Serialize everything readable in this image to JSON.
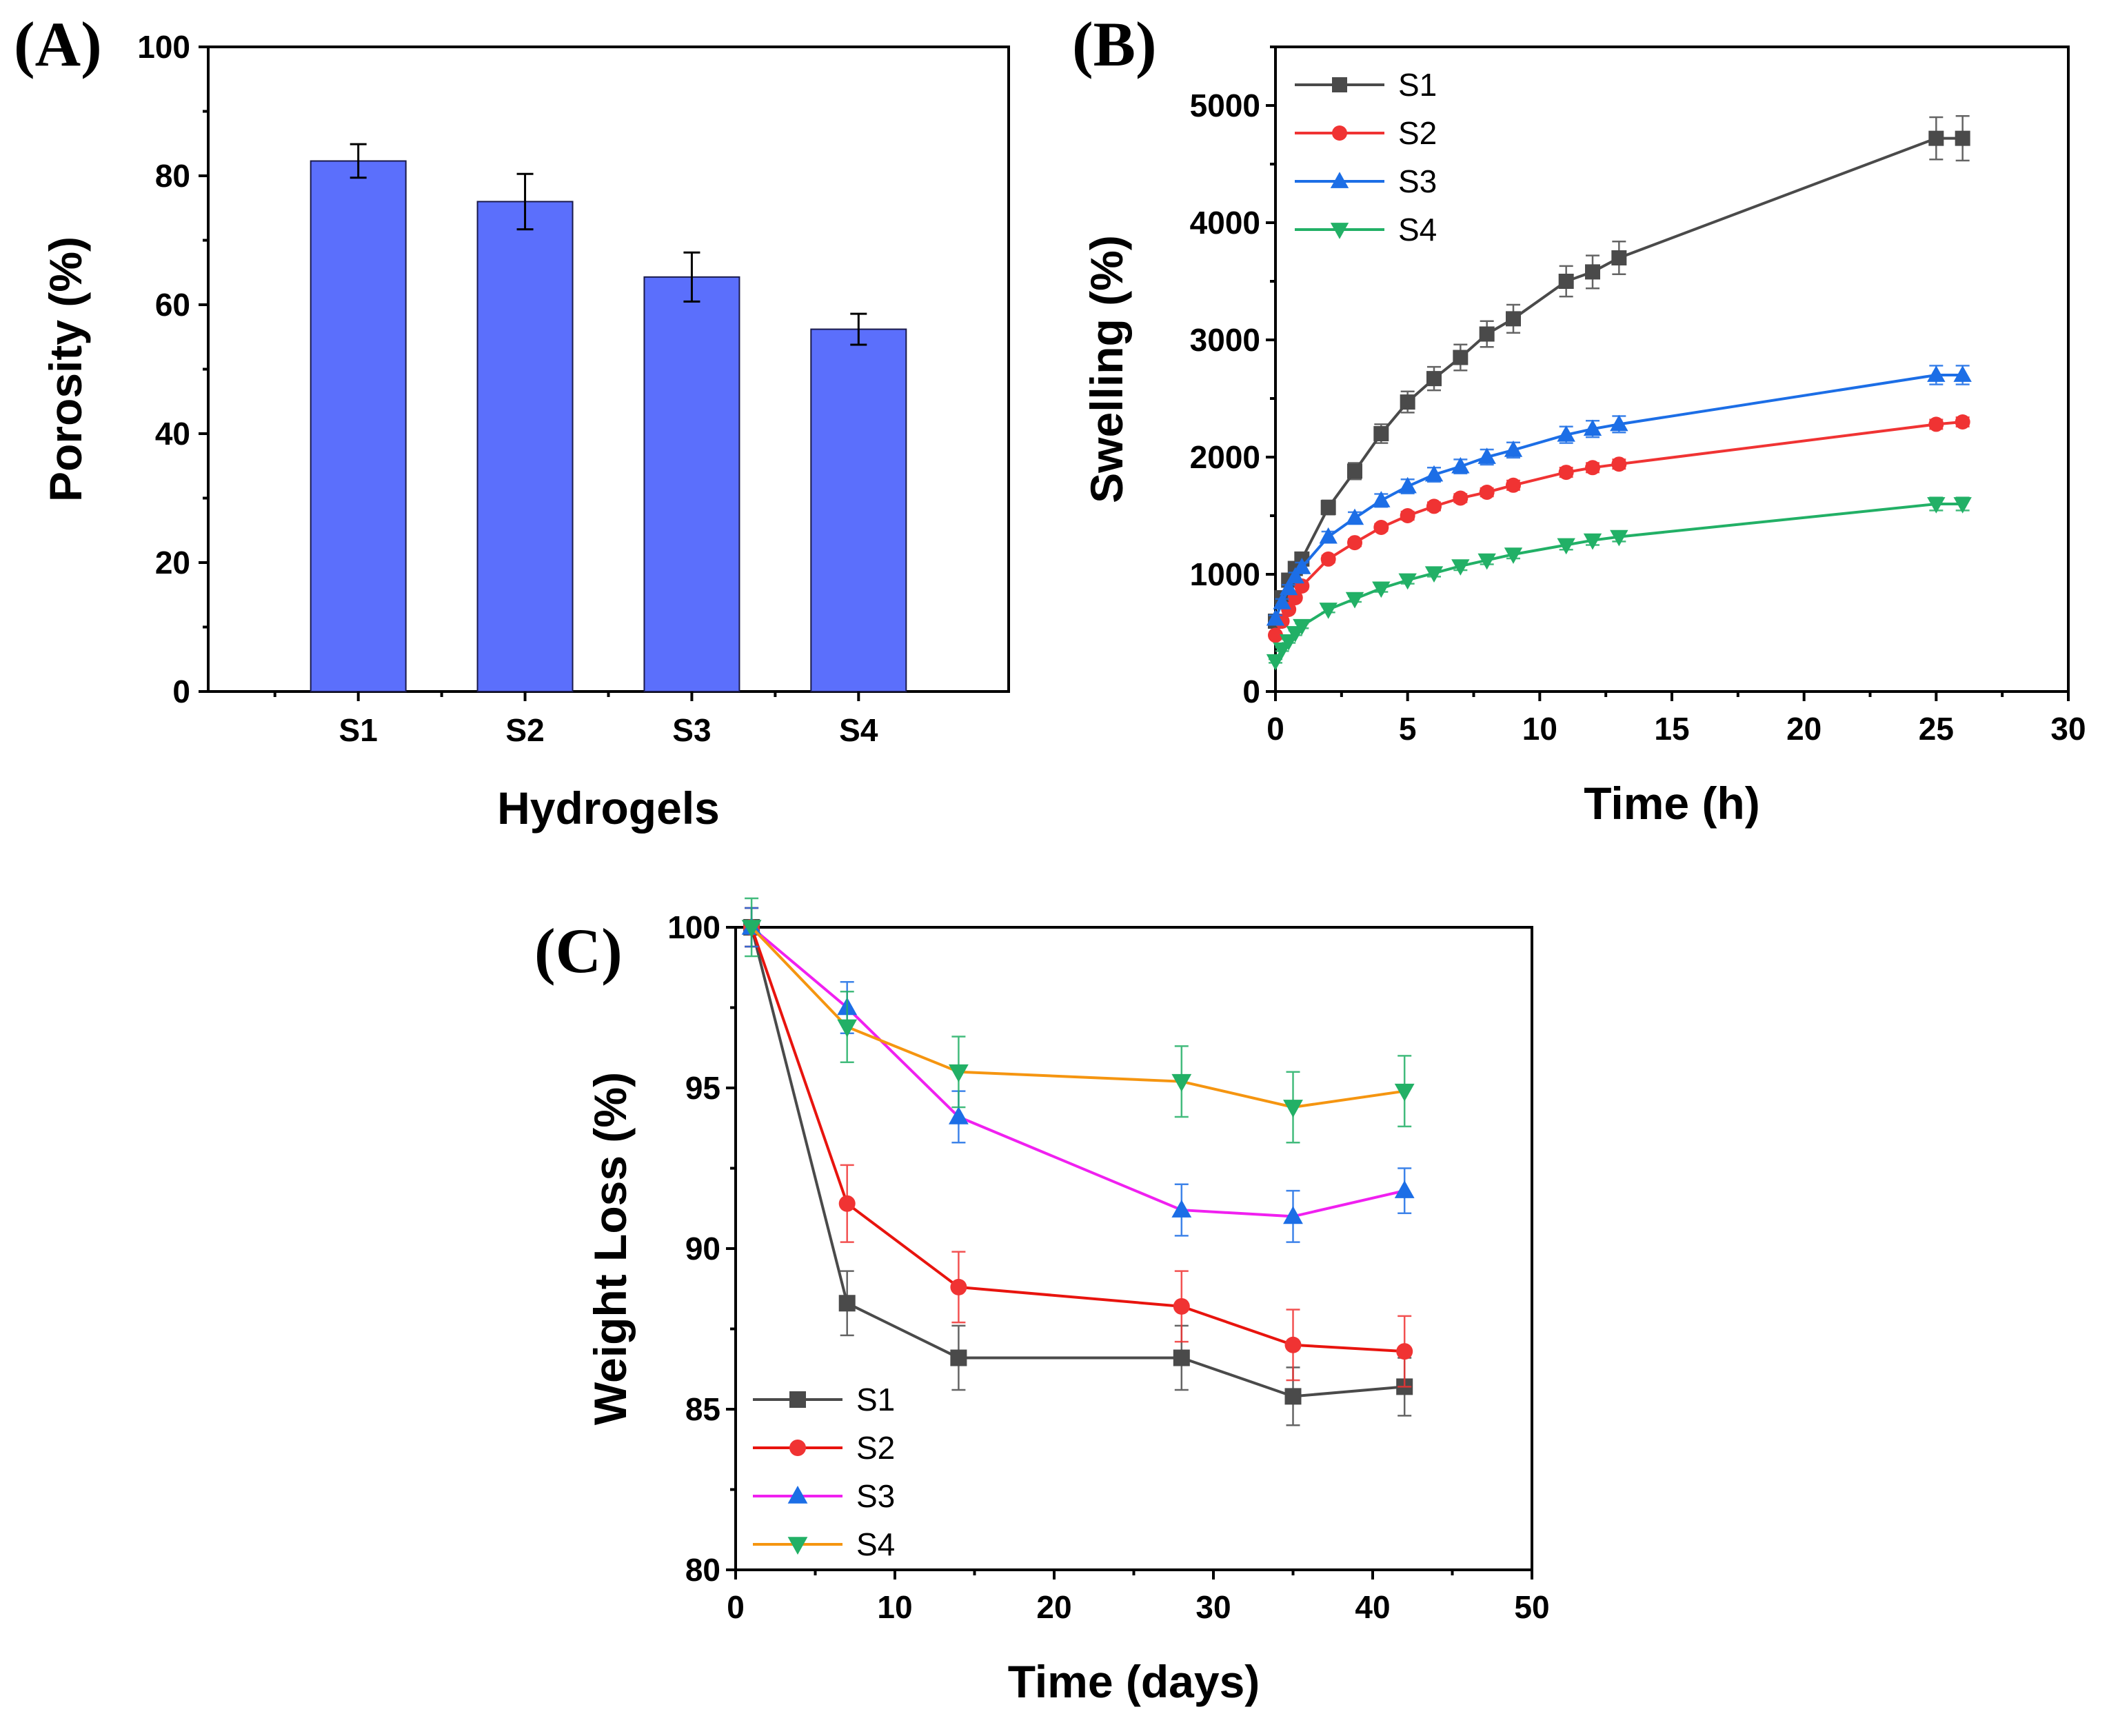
{
  "chart_data": [
    {
      "panel": "(A)",
      "type": "bar",
      "categories": [
        "S1",
        "S2",
        "S3",
        "S4"
      ],
      "values": [
        82.3,
        76.0,
        64.3,
        56.2
      ],
      "errors": [
        2.6,
        4.3,
        3.8,
        2.4
      ],
      "xlabel": "Hydrogels",
      "ylabel": "Porosity (%)",
      "ylim": [
        0,
        100
      ],
      "yticks": [
        0,
        20,
        40,
        60,
        80,
        100
      ],
      "bar_color": "#5b6ffc"
    },
    {
      "panel": "(B)",
      "type": "line",
      "xlabel": "Time (h)",
      "ylabel": "Swelling (%)",
      "xlim": [
        0,
        30
      ],
      "ylim": [
        0,
        5500
      ],
      "xticks": [
        0,
        5,
        10,
        15,
        20,
        25,
        30
      ],
      "yticks": [
        0,
        1000,
        2000,
        3000,
        4000,
        5000
      ],
      "legend_position": "top-left",
      "series": [
        {
          "name": "S1",
          "color": "#4a4a4a",
          "marker": "square",
          "x": [
            0,
            0.25,
            0.5,
            0.75,
            1,
            2,
            3,
            4,
            5,
            6,
            7,
            8,
            9,
            11,
            12,
            13,
            25,
            26
          ],
          "y": [
            600,
            800,
            950,
            1050,
            1130,
            1570,
            1880,
            2200,
            2470,
            2670,
            2850,
            3050,
            3180,
            3500,
            3580,
            3700,
            4720,
            4720
          ],
          "err": [
            40,
            40,
            40,
            50,
            50,
            60,
            70,
            80,
            90,
            100,
            110,
            110,
            120,
            130,
            140,
            140,
            180,
            190
          ]
        },
        {
          "name": "S2",
          "color": "#f03333",
          "marker": "circle",
          "x": [
            0,
            0.25,
            0.5,
            0.75,
            1,
            2,
            3,
            4,
            5,
            6,
            7,
            8,
            9,
            11,
            12,
            13,
            25,
            26
          ],
          "y": [
            480,
            600,
            700,
            800,
            900,
            1130,
            1270,
            1400,
            1500,
            1580,
            1650,
            1700,
            1760,
            1870,
            1910,
            1940,
            2280,
            2300
          ],
          "err": [
            20,
            20,
            20,
            20,
            25,
            30,
            30,
            30,
            35,
            35,
            35,
            35,
            40,
            40,
            40,
            40,
            40,
            40
          ]
        },
        {
          "name": "S3",
          "color": "#1c6ee6",
          "marker": "triangle-up",
          "x": [
            0,
            0.25,
            0.5,
            0.75,
            1,
            2,
            3,
            4,
            5,
            6,
            7,
            8,
            9,
            11,
            12,
            13,
            25,
            26
          ],
          "y": [
            620,
            760,
            880,
            980,
            1060,
            1320,
            1480,
            1630,
            1750,
            1850,
            1920,
            2000,
            2060,
            2190,
            2240,
            2280,
            2700,
            2700
          ],
          "err": [
            30,
            30,
            30,
            35,
            40,
            45,
            50,
            55,
            60,
            60,
            60,
            65,
            65,
            70,
            70,
            70,
            80,
            80
          ]
        },
        {
          "name": "S4",
          "color": "#22b066",
          "marker": "triangle-down",
          "x": [
            0,
            0.25,
            0.5,
            0.75,
            1,
            2,
            3,
            4,
            5,
            6,
            7,
            8,
            9,
            11,
            12,
            13,
            25,
            26
          ],
          "y": [
            260,
            360,
            430,
            500,
            560,
            700,
            790,
            880,
            950,
            1010,
            1070,
            1120,
            1170,
            1250,
            1290,
            1320,
            1600,
            1600
          ],
          "err": [
            15,
            15,
            15,
            20,
            20,
            25,
            25,
            30,
            30,
            30,
            35,
            35,
            35,
            40,
            40,
            40,
            55,
            55
          ]
        }
      ]
    },
    {
      "panel": "(C)",
      "type": "line",
      "xlabel": "Time (days)",
      "ylabel": "Weight Loss (%)",
      "xlim": [
        0,
        50
      ],
      "ylim": [
        80,
        100
      ],
      "xticks": [
        0,
        10,
        20,
        30,
        40,
        50
      ],
      "yticks": [
        80,
        85,
        90,
        95,
        100
      ],
      "legend_position": "bottom-left",
      "series": [
        {
          "name": "S1",
          "line_color": "#4a4a4a",
          "marker_color": "#4a4a4a",
          "marker": "square",
          "x": [
            1,
            7,
            14,
            28,
            35,
            42
          ],
          "y": [
            100,
            88.3,
            86.6,
            86.6,
            85.4,
            85.7
          ],
          "err": [
            0.6,
            1.0,
            1.0,
            1.0,
            0.9,
            0.9
          ]
        },
        {
          "name": "S2",
          "line_color": "#e8140e",
          "marker_color": "#f03333",
          "marker": "circle",
          "x": [
            1,
            7,
            14,
            28,
            35,
            42
          ],
          "y": [
            100,
            91.4,
            88.8,
            88.2,
            87.0,
            86.8
          ],
          "err": [
            0.6,
            1.2,
            1.1,
            1.1,
            1.1,
            1.1
          ]
        },
        {
          "name": "S3",
          "line_color": "#f020f0",
          "marker_color": "#1c6ee6",
          "marker": "triangle-up",
          "x": [
            1,
            7,
            14,
            28,
            35,
            42
          ],
          "y": [
            100,
            97.5,
            94.1,
            91.2,
            91.0,
            91.8
          ],
          "err": [
            0.6,
            0.8,
            0.8,
            0.8,
            0.8,
            0.7
          ]
        },
        {
          "name": "S4",
          "line_color": "#f59510",
          "marker_color": "#22b066",
          "marker": "triangle-down",
          "x": [
            1,
            7,
            14,
            28,
            35,
            42
          ],
          "y": [
            100,
            96.9,
            95.5,
            95.2,
            94.4,
            94.9
          ],
          "err": [
            0.9,
            1.1,
            1.1,
            1.1,
            1.1,
            1.1
          ]
        }
      ]
    }
  ]
}
